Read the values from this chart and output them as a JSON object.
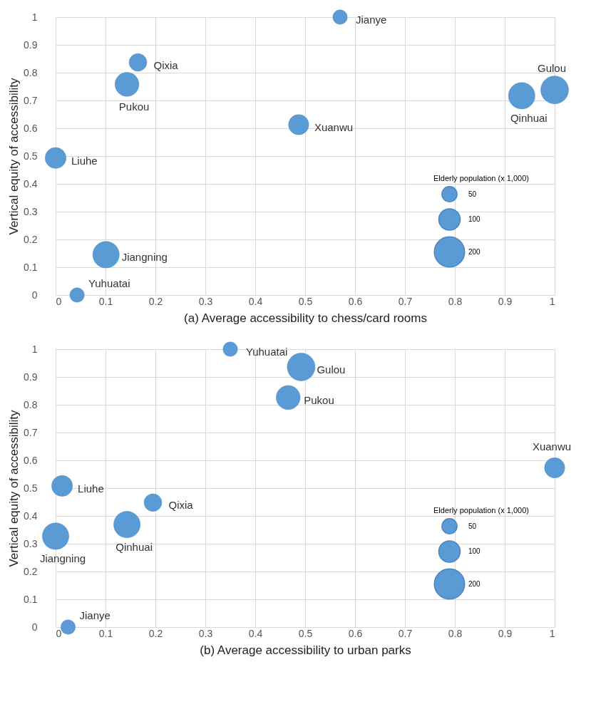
{
  "chart_data": [
    {
      "type": "bubble",
      "xlabel": "(a) Average accessibility to chess/card rooms",
      "ylabel": "Vertical equity of accessibility",
      "legend_title": "Elderly population (x 1,000)",
      "grid": true,
      "x": [
        0.57,
        0.165,
        0.143,
        0.0,
        0.101,
        0.043,
        0.487,
        0.934,
        1.0
      ],
      "series": [
        {
          "color": "#5b9bd5",
          "values": [
            1.0,
            0.837,
            0.758,
            0.493,
            0.145,
            0.0,
            0.613,
            0.717,
            0.738
          ],
          "sizes": [
            46,
            68,
            125,
            95,
            153,
            46,
            89,
            153,
            168
          ]
        }
      ],
      "size_legend": [
        50,
        100,
        200
      ],
      "xlim": [
        0,
        1
      ],
      "ylim": [
        0,
        1
      ],
      "xticks": [
        0,
        0.1,
        0.2,
        0.3,
        0.4,
        0.5,
        0.6,
        0.7,
        0.8,
        0.9,
        1
      ],
      "yticks": [
        0,
        0.1,
        0.2,
        0.3,
        0.4,
        0.5,
        0.6,
        0.7,
        0.8,
        0.9,
        1
      ],
      "annotations": [
        {
          "text": "Jianye",
          "x": 0.57,
          "y": 1.0
        },
        {
          "text": "Qixia",
          "x": 0.165,
          "y": 0.837
        },
        {
          "text": "Pukou",
          "x": 0.143,
          "y": 0.758
        },
        {
          "text": "Liuhe",
          "x": 0.0,
          "y": 0.493
        },
        {
          "text": "Jiangning",
          "x": 0.101,
          "y": 0.145
        },
        {
          "text": "Yuhuatai",
          "x": 0.043,
          "y": 0.0
        },
        {
          "text": "Xuanwu",
          "x": 0.487,
          "y": 0.613
        },
        {
          "text": "Qinhuai",
          "x": 0.934,
          "y": 0.717
        },
        {
          "text": "Gulou",
          "x": 1.0,
          "y": 0.738
        }
      ]
    },
    {
      "type": "bubble",
      "xlabel": "(b) Average accessibility to urban parks",
      "ylabel": "Vertical equity of accessibility",
      "legend_title": "Elderly population (x 1,000)",
      "grid": true,
      "x": [
        0.35,
        0.492,
        0.466,
        1.0,
        0.013,
        0.195,
        0.143,
        0.0,
        0.025
      ],
      "series": [
        {
          "color": "#5b9bd5",
          "values": [
            1.0,
            0.936,
            0.826,
            0.573,
            0.508,
            0.448,
            0.369,
            0.327,
            0.0
          ],
          "sizes": [
            46,
            168,
            125,
            89,
            95,
            68,
            153,
            153,
            46
          ]
        }
      ],
      "size_legend": [
        50,
        100,
        200
      ],
      "xlim": [
        0,
        1
      ],
      "ylim": [
        0,
        1
      ],
      "xticks": [
        0,
        0.1,
        0.2,
        0.3,
        0.4,
        0.5,
        0.6,
        0.7,
        0.8,
        0.9,
        1
      ],
      "yticks": [
        0,
        0.1,
        0.2,
        0.3,
        0.4,
        0.5,
        0.6,
        0.7,
        0.8,
        0.9,
        1
      ],
      "annotations": [
        {
          "text": "Yuhuatai",
          "x": 0.35,
          "y": 1.0
        },
        {
          "text": "Gulou",
          "x": 0.492,
          "y": 0.936
        },
        {
          "text": "Pukou",
          "x": 0.466,
          "y": 0.826
        },
        {
          "text": "Xuanwu",
          "x": 1.0,
          "y": 0.573
        },
        {
          "text": "Liuhe",
          "x": 0.013,
          "y": 0.508
        },
        {
          "text": "Qixia",
          "x": 0.195,
          "y": 0.448
        },
        {
          "text": "Qinhuai",
          "x": 0.143,
          "y": 0.369
        },
        {
          "text": "Jiangning",
          "x": 0.0,
          "y": 0.327
        },
        {
          "text": "Jianye",
          "x": 0.025,
          "y": 0.0
        }
      ]
    }
  ]
}
